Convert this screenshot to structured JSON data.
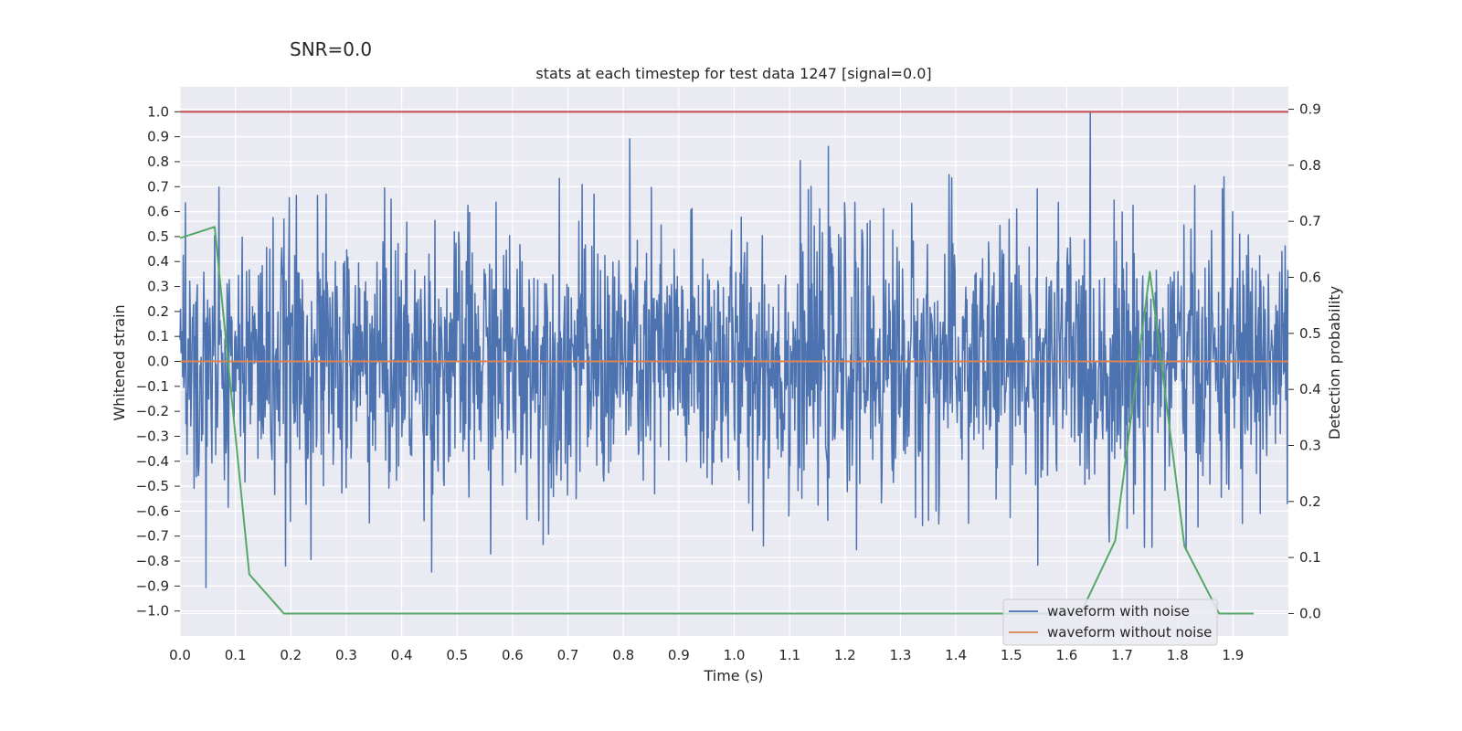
{
  "chart_data": {
    "type": "line",
    "suptitle": "SNR=0.0",
    "title": "stats at each timestep for test data 1247 [signal=0.0]",
    "xlabel": "Time (s)",
    "ylabel": "Whitened strain",
    "ylabel_right": "Detection probability",
    "xlim": [
      0.0,
      2.0
    ],
    "ylim": [
      -1.1,
      1.1
    ],
    "ylim_right": [
      -0.04,
      0.94
    ],
    "xticks": [
      "0.0",
      "0.1",
      "0.2",
      "0.3",
      "0.4",
      "0.5",
      "0.6",
      "0.7",
      "0.8",
      "0.9",
      "1.0",
      "1.1",
      "1.2",
      "1.3",
      "1.4",
      "1.5",
      "1.6",
      "1.7",
      "1.8",
      "1.9"
    ],
    "yticks": [
      "1.0",
      "0.9",
      "0.8",
      "0.7",
      "0.6",
      "0.5",
      "0.4",
      "0.3",
      "0.2",
      "0.1",
      "0.0",
      "−0.1",
      "−0.2",
      "−0.3",
      "−0.4",
      "−0.5",
      "−0.6",
      "−0.7",
      "−0.8",
      "−0.9",
      "−1.0"
    ],
    "yticks_right": [
      "0.9",
      "0.8",
      "0.7",
      "0.6",
      "0.5",
      "0.4",
      "0.3",
      "0.2",
      "0.1",
      "0.0"
    ],
    "grid": true,
    "legend_position": "lower-right",
    "series": [
      {
        "name": "waveform with noise",
        "axis": "left",
        "color": "#4c72b0",
        "kind": "noise",
        "sample_count": 2048,
        "range": [
          -0.99,
          1.0
        ]
      },
      {
        "name": "waveform without noise",
        "axis": "left",
        "color": "#dd8452",
        "x": [
          0.0,
          2.0
        ],
        "y": [
          0.0,
          0.0
        ]
      },
      {
        "axis": "right",
        "color": "#55a868",
        "x": [
          0.0,
          0.0625,
          0.125,
          0.1875,
          0.25,
          0.3125,
          0.375,
          0.4375,
          0.5,
          0.5625,
          0.625,
          0.6875,
          0.75,
          0.8125,
          0.875,
          0.9375,
          1.0,
          1.0625,
          1.125,
          1.1875,
          1.25,
          1.3125,
          1.375,
          1.4375,
          1.5,
          1.5625,
          1.625,
          1.6875,
          1.75,
          1.8125,
          1.875,
          1.9375
        ],
        "y": [
          0.67,
          0.69,
          0.07,
          0.0,
          0.0,
          0.0,
          0.0,
          0.0,
          0.0,
          0.0,
          0.0,
          0.0,
          0.0,
          0.0,
          0.0,
          0.0,
          0.0,
          0.0,
          0.0,
          0.0,
          0.0,
          0.0,
          0.0,
          0.0,
          0.0,
          0.0,
          0.0,
          0.13,
          0.61,
          0.12,
          0.0,
          0.0
        ]
      },
      {
        "axis": "left",
        "color": "#c44e52",
        "x": [
          0.0,
          2.0
        ],
        "y": [
          1.0,
          1.0
        ]
      }
    ]
  }
}
